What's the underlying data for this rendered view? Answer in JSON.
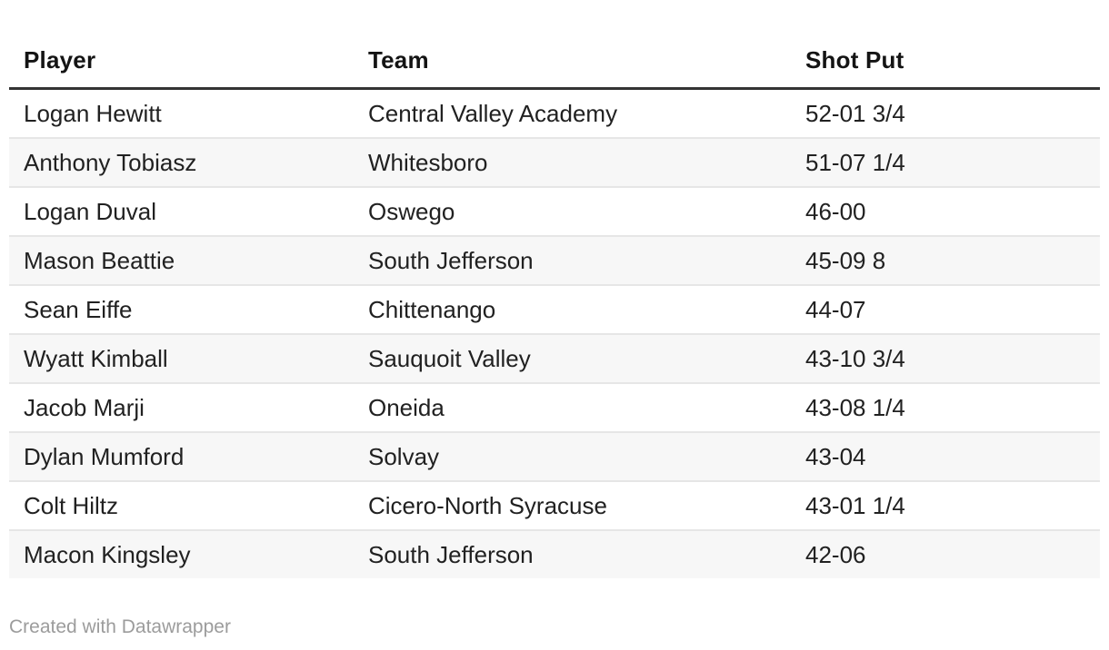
{
  "chart_data": {
    "type": "table",
    "columns": [
      "Player",
      "Team",
      "Shot Put"
    ],
    "rows": [
      [
        "Logan Hewitt",
        "Central Valley Academy",
        "52-01 3/4"
      ],
      [
        "Anthony Tobiasz",
        "Whitesboro",
        "51-07 1/4"
      ],
      [
        "Logan Duval",
        "Oswego",
        "46-00"
      ],
      [
        "Mason Beattie",
        "South Jefferson",
        "45-09 8"
      ],
      [
        "Sean Eiffe",
        "Chittenango",
        "44-07"
      ],
      [
        "Wyatt Kimball",
        "Sauquoit Valley",
        "43-10 3/4"
      ],
      [
        "Jacob Marji",
        "Oneida",
        "43-08 1/4"
      ],
      [
        "Dylan Mumford",
        "Solvay",
        "43-04"
      ],
      [
        "Colt Hiltz",
        "Cicero-North Syracuse",
        "43-01 1/4"
      ],
      [
        "Macon Kingsley",
        "South Jefferson",
        "42-06"
      ]
    ],
    "layout": {
      "striped": true,
      "header_rule": true,
      "grid": "horizontal-only"
    }
  },
  "footer": {
    "credit_label": "Created with Datawrapper"
  },
  "colors": {
    "background": "#ffffff",
    "header_text": "#141414",
    "body_text": "#212121",
    "header_rule": "#333333",
    "row_divider": "#e6e6e6",
    "stripe": "#f7f7f7",
    "footer_text": "#9c9c9c"
  }
}
